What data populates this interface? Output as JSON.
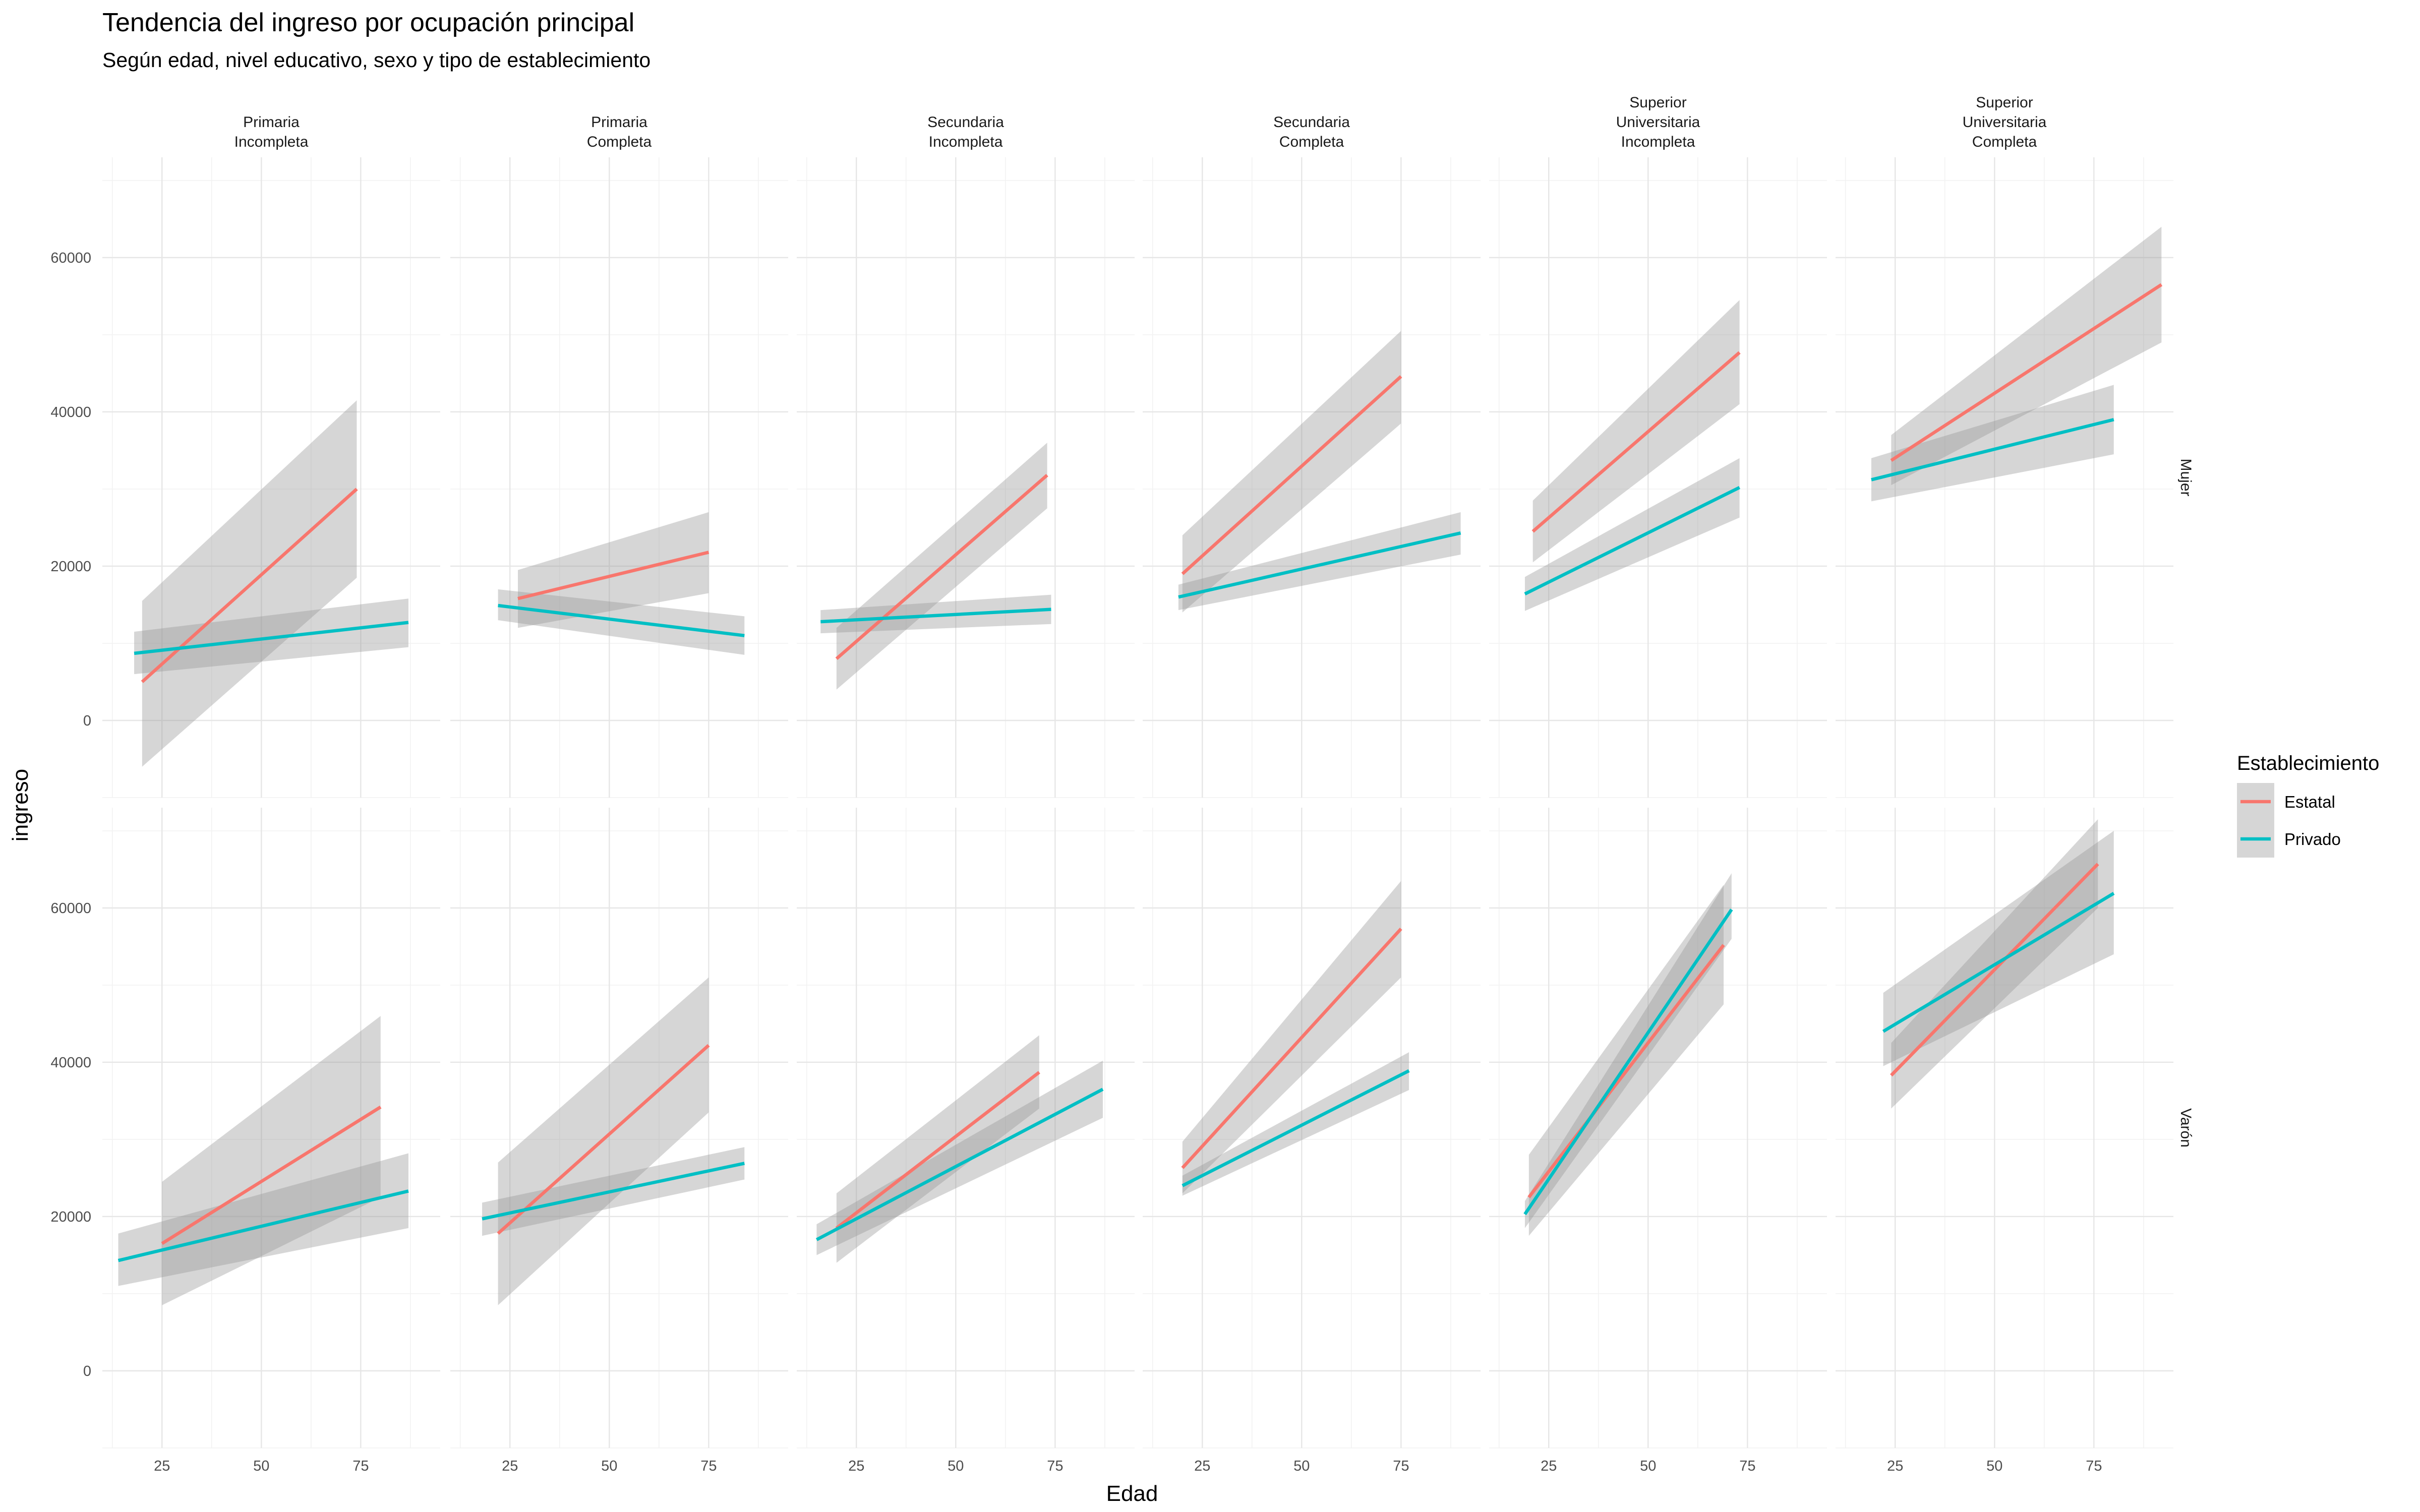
{
  "chart_data": {
    "type": "line",
    "title": "Tendencia del ingreso por ocupación principal",
    "subtitle": "Según edad, nivel educativo, sexo y tipo de establecimiento",
    "xlabel": "Edad",
    "ylabel": "ingreso",
    "xlim": [
      10,
      95
    ],
    "ylim": [
      -10000,
      73000
    ],
    "x_ticks": [
      25,
      50,
      75
    ],
    "y_ticks": [
      0,
      20000,
      40000,
      60000
    ],
    "grid": true,
    "legend": {
      "title": "Establecimiento",
      "position": "right",
      "items": [
        {
          "label": "Estatal",
          "color": "#F8766D"
        },
        {
          "label": "Privado",
          "color": "#00BFC4"
        }
      ]
    },
    "columns": [
      {
        "label_lines": [
          "Primaria",
          "Incompleta"
        ]
      },
      {
        "label_lines": [
          "Primaria",
          "Completa"
        ]
      },
      {
        "label_lines": [
          "Secundaria",
          "Incompleta"
        ]
      },
      {
        "label_lines": [
          "Secundaria",
          "Completa"
        ]
      },
      {
        "label_lines": [
          "Superior",
          "Universitaria",
          "Incompleta"
        ]
      },
      {
        "label_lines": [
          "Superior",
          "Universitaria",
          "Completa"
        ]
      }
    ],
    "rows": [
      {
        "label": "Mujer"
      },
      {
        "label": "Varón"
      }
    ],
    "panels": [
      [
        {
          "series": [
            {
              "name": "Estatal",
              "x": [
                20,
                74
              ],
              "y": [
                5000,
                30000
              ],
              "lower": [
                -6000,
                18500
              ],
              "upper": [
                15500,
                41500
              ]
            },
            {
              "name": "Privado",
              "x": [
                18,
                87
              ],
              "y": [
                8700,
                12700
              ],
              "lower": [
                6000,
                9500
              ],
              "upper": [
                11500,
                15800
              ]
            }
          ]
        },
        {
          "series": [
            {
              "name": "Estatal",
              "x": [
                27,
                75
              ],
              "y": [
                15800,
                21800
              ],
              "lower": [
                12000,
                16500
              ],
              "upper": [
                19500,
                27000
              ]
            },
            {
              "name": "Privado",
              "x": [
                22,
                84
              ],
              "y": [
                14900,
                11000
              ],
              "lower": [
                13000,
                8500
              ],
              "upper": [
                17000,
                13500
              ]
            }
          ]
        },
        {
          "series": [
            {
              "name": "Estatal",
              "x": [
                20,
                73
              ],
              "y": [
                8000,
                31800
              ],
              "lower": [
                4000,
                27500
              ],
              "upper": [
                12000,
                36000
              ]
            },
            {
              "name": "Privado",
              "x": [
                16,
                74
              ],
              "y": [
                12800,
                14400
              ],
              "lower": [
                11300,
                12500
              ],
              "upper": [
                14300,
                16300
              ]
            }
          ]
        },
        {
          "series": [
            {
              "name": "Estatal",
              "x": [
                20,
                75
              ],
              "y": [
                19000,
                44600
              ],
              "lower": [
                14000,
                38500
              ],
              "upper": [
                24000,
                50500
              ]
            },
            {
              "name": "Privado",
              "x": [
                19,
                90
              ],
              "y": [
                16000,
                24300
              ],
              "lower": [
                14300,
                21500
              ],
              "upper": [
                17600,
                27000
              ]
            }
          ]
        },
        {
          "series": [
            {
              "name": "Estatal",
              "x": [
                21,
                73
              ],
              "y": [
                24500,
                47700
              ],
              "lower": [
                20500,
                41000
              ],
              "upper": [
                28500,
                54500
              ]
            },
            {
              "name": "Privado",
              "x": [
                19,
                73
              ],
              "y": [
                16400,
                30200
              ],
              "lower": [
                14200,
                26300
              ],
              "upper": [
                18600,
                34000
              ]
            }
          ]
        },
        {
          "series": [
            {
              "name": "Estatal",
              "x": [
                24,
                92
              ],
              "y": [
                33700,
                56500
              ],
              "lower": [
                30500,
                49000
              ],
              "upper": [
                37000,
                64000
              ]
            },
            {
              "name": "Privado",
              "x": [
                19,
                80
              ],
              "y": [
                31200,
                39000
              ],
              "lower": [
                28400,
                34500
              ],
              "upper": [
                34000,
                43500
              ]
            }
          ]
        }
      ],
      [
        {
          "series": [
            {
              "name": "Estatal",
              "x": [
                25,
                80
              ],
              "y": [
                16500,
                34200
              ],
              "lower": [
                8500,
                22500
              ],
              "upper": [
                24500,
                46000
              ]
            },
            {
              "name": "Privado",
              "x": [
                14,
                87
              ],
              "y": [
                14300,
                23300
              ],
              "lower": [
                11000,
                18500
              ],
              "upper": [
                17800,
                28200
              ]
            }
          ]
        },
        {
          "series": [
            {
              "name": "Estatal",
              "x": [
                22,
                75
              ],
              "y": [
                17800,
                42200
              ],
              "lower": [
                8500,
                33500
              ],
              "upper": [
                27000,
                51000
              ]
            },
            {
              "name": "Privado",
              "x": [
                18,
                84
              ],
              "y": [
                19700,
                26900
              ],
              "lower": [
                17500,
                24800
              ],
              "upper": [
                21800,
                29000
              ]
            }
          ]
        },
        {
          "series": [
            {
              "name": "Estatal",
              "x": [
                20,
                71
              ],
              "y": [
                18500,
                38700
              ],
              "lower": [
                14000,
                34000
              ],
              "upper": [
                23000,
                43500
              ]
            },
            {
              "name": "Privado",
              "x": [
                15,
                87
              ],
              "y": [
                17000,
                36500
              ],
              "lower": [
                15000,
                32800
              ],
              "upper": [
                19000,
                40200
              ]
            }
          ]
        },
        {
          "series": [
            {
              "name": "Estatal",
              "x": [
                20,
                75
              ],
              "y": [
                26300,
                57300
              ],
              "lower": [
                23000,
                51000
              ],
              "upper": [
                29700,
                63500
              ]
            },
            {
              "name": "Privado",
              "x": [
                20,
                77
              ],
              "y": [
                24000,
                38900
              ],
              "lower": [
                22700,
                36400
              ],
              "upper": [
                25300,
                41300
              ]
            }
          ]
        },
        {
          "series": [
            {
              "name": "Estatal",
              "x": [
                20,
                69
              ],
              "y": [
                22500,
                55200
              ],
              "lower": [
                17500,
                47500
              ],
              "upper": [
                28000,
                63000
              ]
            },
            {
              "name": "Privado",
              "x": [
                19,
                71
              ],
              "y": [
                20300,
                59800
              ],
              "lower": [
                18500,
                56000
              ],
              "upper": [
                22000,
                64500
              ]
            }
          ]
        },
        {
          "series": [
            {
              "name": "Estatal",
              "x": [
                24,
                76
              ],
              "y": [
                38300,
                65700
              ],
              "lower": [
                34000,
                60000
              ],
              "upper": [
                42500,
                71500
              ]
            },
            {
              "name": "Privado",
              "x": [
                22,
                80
              ],
              "y": [
                44000,
                61900
              ],
              "lower": [
                39500,
                54000
              ],
              "upper": [
                49000,
                70000
              ]
            }
          ]
        }
      ]
    ]
  }
}
